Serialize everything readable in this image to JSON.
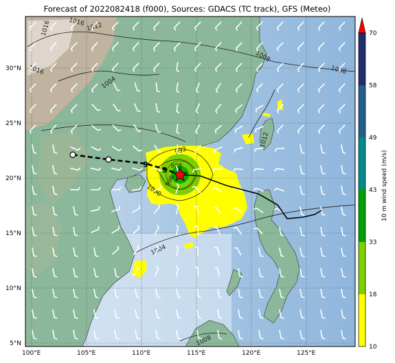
{
  "title": "Forecast of 2022082418 (f000), Sources: GDACS (TC track), GFS (Meteo)",
  "map": {
    "lon_ticks": [
      "100°E",
      "105°E",
      "110°E",
      "115°E",
      "120°E",
      "125°E"
    ],
    "lat_ticks": [
      "30°N",
      "25°N",
      "20°N",
      "15°N",
      "10°N",
      "5°N"
    ],
    "isobar_labels": [
      "1016",
      "1016",
      "1012",
      "1016",
      "1004",
      "1008",
      "1008",
      "1012",
      "1000",
      "996",
      "992",
      "988",
      "1004",
      "1008"
    ]
  },
  "colorbar": {
    "label": "10 m wind speed (m/s)",
    "ticks": [
      "70",
      "58",
      "49",
      "43",
      "33",
      "18",
      "10"
    ],
    "colors": [
      "#ffff00",
      "#7fd000",
      "#00a000",
      "#008c8c",
      "#1f5f8c",
      "#1f2f6e"
    ],
    "extend_color": "#ff0000"
  },
  "track": {
    "storm_symbol": "red-star",
    "colors": {
      "forecast": "#000000",
      "past": "#000000"
    }
  }
}
